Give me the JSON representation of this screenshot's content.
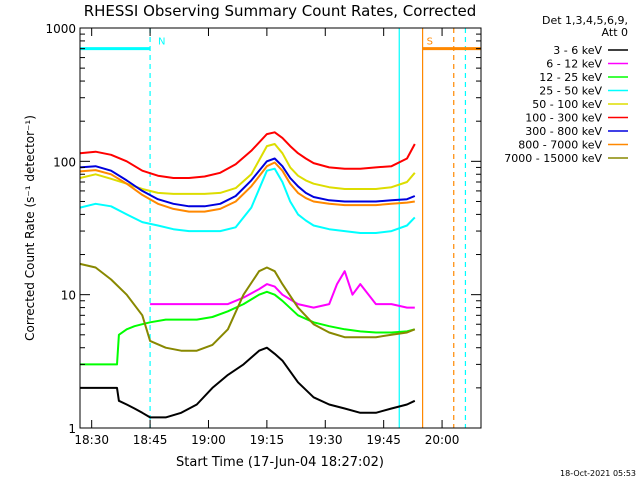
{
  "chart_data": {
    "type": "line",
    "title": "RHESSI Observing Summary Count Rates, Corrected",
    "xlabel": "Start Time (17-Jun-04 18:27:02)",
    "ylabel": "Corrected Count Rate (s⁻¹ detector⁻¹)",
    "xscale": "time (minutes after 18:27:02)",
    "yscale": "log",
    "xlim": [
      0,
      103
    ],
    "ylim": [
      1,
      1000
    ],
    "x_ticks": [
      {
        "x": 3,
        "label": "18:30"
      },
      {
        "x": 18,
        "label": "18:45"
      },
      {
        "x": 33,
        "label": "19:00"
      },
      {
        "x": 48,
        "label": "19:15"
      },
      {
        "x": 63,
        "label": "19:30"
      },
      {
        "x": 78,
        "label": "19:45"
      },
      {
        "x": 93,
        "label": "20:00"
      }
    ],
    "y_ticks": [
      {
        "y": 1,
        "label": "1"
      },
      {
        "y": 10,
        "label": "10"
      },
      {
        "y": 100,
        "label": "100"
      },
      {
        "y": 1000,
        "label": "1000"
      }
    ],
    "legend_header": [
      "Det 1,3,4,5,6,9,",
      "Att 0"
    ],
    "legend_position": "right",
    "series": [
      {
        "name": "3 - 6 keV",
        "color": "#000000",
        "x": [
          0,
          9.5,
          10,
          12,
          14,
          16,
          18,
          22,
          26,
          30,
          34,
          38,
          42,
          46,
          48,
          50,
          52,
          56,
          60,
          64,
          68,
          72,
          76,
          80,
          84,
          86
        ],
        "y": [
          2,
          2,
          1.6,
          1.5,
          1.4,
          1.3,
          1.2,
          1.2,
          1.3,
          1.5,
          2,
          2.5,
          3,
          3.8,
          4,
          3.6,
          3.2,
          2.2,
          1.7,
          1.5,
          1.4,
          1.3,
          1.3,
          1.4,
          1.5,
          1.6
        ]
      },
      {
        "name": "6 - 12 keV",
        "color": "#ff00ff",
        "x": [
          18,
          22,
          26,
          30,
          34,
          38,
          42,
          46,
          48,
          50,
          52,
          56,
          60,
          64,
          66,
          68,
          70,
          72,
          76,
          80,
          84,
          86
        ],
        "y": [
          8.5,
          8.5,
          8.5,
          8.5,
          8.5,
          8.5,
          9.5,
          11,
          12,
          11.5,
          10,
          8.5,
          8,
          8.5,
          12,
          15,
          10,
          12,
          8.5,
          8.5,
          8,
          8
        ]
      },
      {
        "name": "12 - 25 keV",
        "color": "#00ff00",
        "x": [
          0,
          9.5,
          10,
          12,
          14,
          16,
          18,
          22,
          26,
          30,
          34,
          38,
          42,
          46,
          48,
          50,
          52,
          56,
          60,
          64,
          68,
          72,
          76,
          80,
          84,
          86
        ],
        "y": [
          3,
          3,
          5,
          5.5,
          5.8,
          6,
          6.2,
          6.5,
          6.5,
          6.5,
          6.8,
          7.5,
          8.5,
          10,
          10.5,
          10,
          9,
          7,
          6.2,
          5.8,
          5.5,
          5.3,
          5.2,
          5.2,
          5.3,
          5.5
        ]
      },
      {
        "name": "25 - 50 keV",
        "color": "#00ffff",
        "x": [
          0,
          4,
          8,
          12,
          16,
          20,
          24,
          28,
          32,
          36,
          40,
          44,
          48,
          50,
          52,
          54,
          56,
          58,
          60,
          64,
          68,
          72,
          76,
          80,
          84,
          86
        ],
        "y": [
          45,
          48,
          46,
          40,
          35,
          33,
          31,
          30,
          30,
          30,
          32,
          45,
          85,
          88,
          70,
          50,
          40,
          36,
          33,
          31,
          30,
          29,
          29,
          30,
          33,
          38
        ]
      },
      {
        "name": "50 - 100 keV",
        "color": "#dddd00",
        "x": [
          0,
          4,
          8,
          12,
          16,
          20,
          24,
          28,
          32,
          36,
          40,
          44,
          48,
          50,
          52,
          54,
          56,
          58,
          60,
          64,
          68,
          72,
          76,
          80,
          84,
          86
        ],
        "y": [
          75,
          80,
          74,
          68,
          62,
          58,
          57,
          57,
          57,
          58,
          63,
          80,
          130,
          135,
          115,
          90,
          78,
          72,
          68,
          64,
          62,
          62,
          62,
          64,
          70,
          82
        ]
      },
      {
        "name": "100 - 300 keV",
        "color": "#ff0000",
        "x": [
          0,
          4,
          8,
          12,
          16,
          20,
          24,
          28,
          32,
          36,
          40,
          44,
          48,
          50,
          52,
          54,
          56,
          58,
          60,
          64,
          68,
          72,
          76,
          80,
          84,
          86
        ],
        "y": [
          115,
          118,
          112,
          100,
          85,
          78,
          75,
          75,
          77,
          82,
          95,
          120,
          160,
          165,
          150,
          130,
          115,
          105,
          97,
          90,
          88,
          88,
          90,
          92,
          105,
          135
        ]
      },
      {
        "name": "300 - 800 keV",
        "color": "#0000dd",
        "x": [
          0,
          4,
          8,
          12,
          16,
          20,
          24,
          28,
          32,
          36,
          40,
          44,
          48,
          50,
          52,
          54,
          56,
          58,
          60,
          64,
          68,
          72,
          76,
          80,
          84,
          86
        ],
        "y": [
          90,
          92,
          85,
          72,
          60,
          52,
          48,
          46,
          46,
          48,
          55,
          72,
          100,
          105,
          92,
          75,
          65,
          58,
          54,
          51,
          50,
          50,
          50,
          51,
          52,
          55
        ]
      },
      {
        "name": "800 - 7000 keV",
        "color": "#ff8800",
        "x": [
          0,
          4,
          8,
          12,
          16,
          20,
          24,
          28,
          32,
          36,
          40,
          44,
          48,
          50,
          52,
          54,
          56,
          58,
          60,
          64,
          68,
          72,
          76,
          80,
          84,
          86
        ],
        "y": [
          84,
          86,
          80,
          68,
          56,
          48,
          44,
          42,
          42,
          44,
          50,
          65,
          92,
          98,
          85,
          68,
          58,
          53,
          50,
          48,
          47,
          47,
          47,
          48,
          49,
          50
        ]
      },
      {
        "name": "7000 - 15000 keV",
        "color": "#888800",
        "x": [
          0,
          4,
          8,
          12,
          16,
          18,
          22,
          26,
          30,
          34,
          38,
          42,
          46,
          48,
          50,
          52,
          56,
          60,
          64,
          68,
          72,
          76,
          80,
          84,
          86
        ],
        "y": [
          17,
          16,
          13,
          10,
          7,
          4.5,
          4,
          3.8,
          3.8,
          4.2,
          5.5,
          10,
          15,
          16,
          15,
          12,
          8,
          6,
          5.2,
          4.8,
          4.8,
          4.8,
          5,
          5.2,
          5.5
        ]
      }
    ],
    "annotations": [
      {
        "label": "N",
        "x_start": 0,
        "x_end": 18,
        "y": 700,
        "color": "#00ffff"
      },
      {
        "label": "S",
        "x_start": 88,
        "x_end": 103,
        "y": 700,
        "color": "#ff8800"
      }
    ],
    "markers": [
      {
        "x": 18,
        "color": "#00ffff",
        "style": "dashed"
      },
      {
        "x": 82,
        "color": "#00ffff",
        "style": "solid"
      },
      {
        "x": 88,
        "color": "#ff8800",
        "style": "solid"
      },
      {
        "x": 96,
        "color": "#ff8800",
        "style": "dashed"
      },
      {
        "x": 99,
        "color": "#00ffff",
        "style": "dashed"
      }
    ],
    "grid": false
  },
  "footer": {
    "timestamp": "18-Oct-2021 05:53"
  }
}
